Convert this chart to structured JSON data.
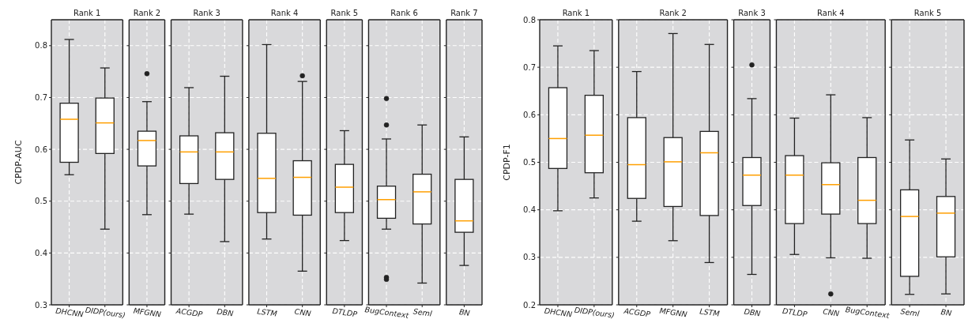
{
  "chart_data": [
    {
      "type": "box",
      "title": "Rank 1",
      "ylabel": "CPDP-AUC",
      "categories": [
        "DHCNN",
        "DIDP(ours)"
      ],
      "ylim": [
        0.3,
        0.85
      ],
      "yticks": [
        0.3,
        0.4,
        0.5,
        0.6,
        0.7,
        0.8
      ],
      "grid": true,
      "boxes": [
        {
          "low": 0.551,
          "q1": 0.575,
          "median": 0.658,
          "q3": 0.689,
          "high": 0.812
        },
        {
          "low": 0.446,
          "q1": 0.592,
          "median": 0.651,
          "q3": 0.699,
          "high": 0.757
        }
      ]
    },
    {
      "type": "box",
      "title": "Rank 2",
      "categories": [
        "MFGNN"
      ],
      "ylim": [
        0.3,
        0.85
      ],
      "yticks": [
        0.3,
        0.4,
        0.5,
        0.6,
        0.7,
        0.8
      ],
      "grid": true,
      "tick_labels": "x",
      "boxes": [
        {
          "low": 0.474,
          "q1": 0.568,
          "median": 0.617,
          "q3": 0.635,
          "high": 0.692,
          "outliers": [
            0.746
          ]
        }
      ]
    },
    {
      "type": "box",
      "title": "Rank 3",
      "categories": [
        "ACGDP",
        "DBN"
      ],
      "ylim": [
        0.3,
        0.85
      ],
      "yticks": [
        0.3,
        0.4,
        0.5,
        0.6,
        0.7,
        0.8
      ],
      "grid": true,
      "tick_labels": "x",
      "boxes": [
        {
          "low": 0.475,
          "q1": 0.534,
          "median": 0.595,
          "q3": 0.626,
          "high": 0.719
        },
        {
          "low": 0.422,
          "q1": 0.542,
          "median": 0.595,
          "q3": 0.632,
          "high": 0.741
        }
      ]
    },
    {
      "type": "box",
      "title": "Rank 4",
      "categories": [
        "LSTM",
        "CNN"
      ],
      "ylim": [
        0.3,
        0.85
      ],
      "yticks": [
        0.3,
        0.4,
        0.5,
        0.6,
        0.7,
        0.8
      ],
      "grid": true,
      "tick_labels": "x",
      "boxes": [
        {
          "low": 0.427,
          "q1": 0.478,
          "median": 0.544,
          "q3": 0.631,
          "high": 0.802
        },
        {
          "low": 0.365,
          "q1": 0.473,
          "median": 0.546,
          "q3": 0.578,
          "high": 0.731,
          "outliers": [
            0.742
          ]
        }
      ]
    },
    {
      "type": "box",
      "title": "Rank 5",
      "categories": [
        "DTLDP"
      ],
      "ylim": [
        0.3,
        0.85
      ],
      "yticks": [
        0.3,
        0.4,
        0.5,
        0.6,
        0.7,
        0.8
      ],
      "grid": true,
      "tick_labels": "x",
      "boxes": [
        {
          "low": 0.424,
          "q1": 0.478,
          "median": 0.527,
          "q3": 0.571,
          "high": 0.636
        }
      ]
    },
    {
      "type": "box",
      "title": "Rank 6",
      "categories": [
        "BugContext",
        "Seml"
      ],
      "ylim": [
        0.3,
        0.85
      ],
      "yticks": [
        0.3,
        0.4,
        0.5,
        0.6,
        0.7,
        0.8
      ],
      "grid": true,
      "tick_labels": "x",
      "boxes": [
        {
          "low": 0.446,
          "q1": 0.467,
          "median": 0.503,
          "q3": 0.529,
          "high": 0.62,
          "outliers": [
            0.698,
            0.647,
            0.353,
            0.349
          ]
        },
        {
          "low": 0.342,
          "q1": 0.456,
          "median": 0.518,
          "q3": 0.552,
          "high": 0.647
        }
      ]
    },
    {
      "type": "box",
      "title": "Rank 7",
      "categories": [
        "BN"
      ],
      "ylim": [
        0.3,
        0.85
      ],
      "yticks": [
        0.3,
        0.4,
        0.5,
        0.6,
        0.7,
        0.8
      ],
      "grid": true,
      "tick_labels": "x",
      "boxes": [
        {
          "low": 0.376,
          "q1": 0.44,
          "median": 0.462,
          "q3": 0.542,
          "high": 0.624
        }
      ]
    },
    {
      "type": "box",
      "title": "Rank 1",
      "ylabel": "CPDP-F1",
      "categories": [
        "DHCNN",
        "DIDP(ours)"
      ],
      "ylim": [
        0.2,
        0.8
      ],
      "yticks": [
        0.2,
        0.3,
        0.4,
        0.5,
        0.6,
        0.7,
        0.8
      ],
      "grid": true,
      "boxes": [
        {
          "low": 0.398,
          "q1": 0.487,
          "median": 0.55,
          "q3": 0.657,
          "high": 0.745
        },
        {
          "low": 0.425,
          "q1": 0.478,
          "median": 0.557,
          "q3": 0.641,
          "high": 0.735
        }
      ]
    },
    {
      "type": "box",
      "title": "Rank 2",
      "categories": [
        "ACGDP",
        "MFGNN",
        "LSTM"
      ],
      "ylim": [
        0.2,
        0.8
      ],
      "yticks": [
        0.2,
        0.3,
        0.4,
        0.5,
        0.6,
        0.7,
        0.8
      ],
      "grid": true,
      "tick_labels": "x",
      "boxes": [
        {
          "low": 0.376,
          "q1": 0.424,
          "median": 0.495,
          "q3": 0.594,
          "high": 0.691
        },
        {
          "low": 0.335,
          "q1": 0.407,
          "median": 0.501,
          "q3": 0.552,
          "high": 0.771
        },
        {
          "low": 0.289,
          "q1": 0.388,
          "median": 0.52,
          "q3": 0.565,
          "high": 0.748
        }
      ]
    },
    {
      "type": "box",
      "title": "Rank 3",
      "categories": [
        "DBN"
      ],
      "ylim": [
        0.2,
        0.8
      ],
      "yticks": [
        0.2,
        0.3,
        0.4,
        0.5,
        0.6,
        0.7,
        0.8
      ],
      "grid": true,
      "tick_labels": "x",
      "boxes": [
        {
          "low": 0.264,
          "q1": 0.409,
          "median": 0.473,
          "q3": 0.51,
          "high": 0.634,
          "outliers": [
            0.705
          ]
        }
      ]
    },
    {
      "type": "box",
      "title": "Rank 4",
      "categories": [
        "DTLDP",
        "CNN",
        "BugContext"
      ],
      "ylim": [
        0.2,
        0.8
      ],
      "yticks": [
        0.2,
        0.3,
        0.4,
        0.5,
        0.6,
        0.7,
        0.8
      ],
      "grid": true,
      "tick_labels": "x",
      "boxes": [
        {
          "low": 0.306,
          "q1": 0.371,
          "median": 0.473,
          "q3": 0.514,
          "high": 0.593
        },
        {
          "low": 0.299,
          "q1": 0.391,
          "median": 0.453,
          "q3": 0.499,
          "high": 0.642,
          "outliers": [
            0.223
          ]
        },
        {
          "low": 0.298,
          "q1": 0.371,
          "median": 0.42,
          "q3": 0.51,
          "high": 0.594
        }
      ]
    },
    {
      "type": "box",
      "title": "Rank 5",
      "categories": [
        "Seml",
        "BN"
      ],
      "ylim": [
        0.2,
        0.8
      ],
      "yticks": [
        0.2,
        0.3,
        0.4,
        0.5,
        0.6,
        0.7,
        0.8
      ],
      "grid": true,
      "tick_labels": "x",
      "boxes": [
        {
          "low": 0.222,
          "q1": 0.26,
          "median": 0.386,
          "q3": 0.442,
          "high": 0.547
        },
        {
          "low": 0.223,
          "q1": 0.301,
          "median": 0.393,
          "q3": 0.428,
          "high": 0.507
        }
      ]
    }
  ]
}
